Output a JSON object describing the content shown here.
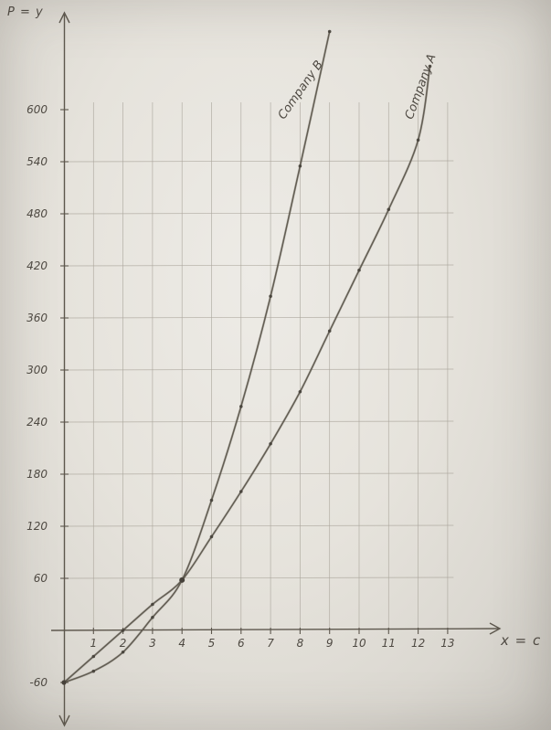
{
  "page": {
    "description": "Photograph of a hand-drawn pencil graph on paper comparing two companies",
    "paper_color": "#e8e5df",
    "pencil_color": "#5d574d",
    "grid_color": "#aaa59b",
    "dot_color": "#46413a"
  },
  "chart_data": {
    "type": "line",
    "title": "",
    "xlabel": "x = c",
    "ylabel": "P = y",
    "style": "hand-drawn-pencil-on-paper",
    "grid": true,
    "legend_position": "labels-along-curves",
    "xlim": [
      0,
      13.5
    ],
    "ylim": [
      -90,
      700
    ],
    "x_ticks": [
      1,
      2,
      3,
      4,
      5,
      6,
      7,
      8,
      9,
      10,
      11,
      12,
      13
    ],
    "y_ticks": [
      600,
      540,
      480,
      420,
      360,
      300,
      240,
      180,
      120,
      60,
      -60
    ],
    "series": [
      {
        "name": "Company A",
        "label_rotation": -70,
        "label_anchor": [
          11.8,
          588
        ],
        "points": [
          [
            0,
            -60
          ],
          [
            1,
            -30
          ],
          [
            2,
            0
          ],
          [
            3,
            30
          ],
          [
            4,
            58
          ],
          [
            5,
            108
          ],
          [
            6,
            160
          ],
          [
            7,
            215
          ],
          [
            8,
            275
          ],
          [
            9,
            345
          ],
          [
            10,
            415
          ],
          [
            11,
            485
          ],
          [
            12,
            565
          ],
          [
            12.4,
            650
          ]
        ]
      },
      {
        "name": "Company B",
        "label_rotation": -55,
        "label_anchor": [
          7.45,
          588
        ],
        "points": [
          [
            0,
            -60
          ],
          [
            1,
            -47
          ],
          [
            2,
            -25
          ],
          [
            3,
            15
          ],
          [
            4,
            58
          ],
          [
            5,
            150
          ],
          [
            6,
            258
          ],
          [
            7,
            385
          ],
          [
            8,
            535
          ],
          [
            9,
            690
          ]
        ]
      }
    ],
    "intersection_point": [
      4,
      58
    ],
    "origin_point": [
      0,
      -60
    ]
  }
}
